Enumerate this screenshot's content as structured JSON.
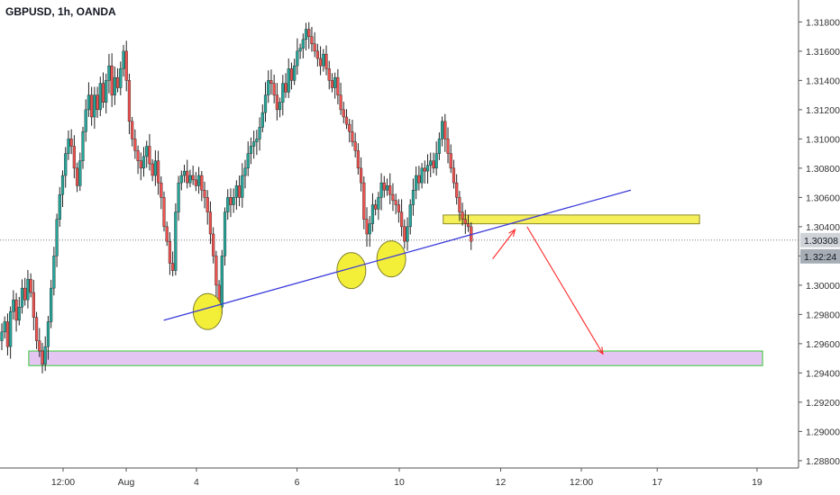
{
  "header": {
    "title": "GBPUSD, 1h, OANDA"
  },
  "chart_data": {
    "type": "candlestick",
    "symbol": "GBPUSD",
    "interval": "1h",
    "source": "OANDA",
    "ylim": [
      1.2875,
      1.3195
    ],
    "y_ticks": [
      "1.31800",
      "1.31600",
      "1.31400",
      "1.31200",
      "1.31000",
      "1.30800",
      "1.30600",
      "1.30400",
      "1.30200",
      "1.30000",
      "1.29800",
      "1.29600",
      "1.29400",
      "1.29200",
      "1.29000",
      "1.28800"
    ],
    "x_ticks": [
      "12:00",
      "Aug",
      "4",
      "6",
      "10",
      "12",
      "12:00",
      "17",
      "19"
    ],
    "last_price": {
      "label": "1.30308",
      "value": 1.30308
    },
    "countdown": {
      "label": "32:24"
    },
    "partial_label": "1.",
    "colors": {
      "up": "#26a69a",
      "down": "#ef5350",
      "wick": "#222222",
      "trendline": "#3b3bdb",
      "resistance": "#f5ef5a",
      "support": "#e4c6f2",
      "support_border": "#33cc33",
      "circle": "#f3ef2e",
      "arrow": "#ff2a2a"
    },
    "closes": [
      1.2968,
      1.2975,
      1.2958,
      1.2982,
      1.299,
      1.2976,
      1.2985,
      1.2998,
      1.299,
      1.3004,
      1.2995,
      1.2978,
      1.2962,
      1.2955,
      1.2946,
      1.2958,
      1.2975,
      1.2998,
      1.302,
      1.3045,
      1.3062,
      1.3075,
      1.309,
      1.31,
      1.3095,
      1.308,
      1.3068,
      1.3085,
      1.3105,
      1.312,
      1.313,
      1.3115,
      1.313,
      1.312,
      1.3138,
      1.3125,
      1.314,
      1.315,
      1.313,
      1.3142,
      1.3135,
      1.3148,
      1.316,
      1.314,
      1.3112,
      1.31,
      1.3092,
      1.3085,
      1.308,
      1.3088,
      1.3095,
      1.3083,
      1.3075,
      1.3085,
      1.307,
      1.306,
      1.304,
      1.303,
      1.3015,
      1.301,
      1.305,
      1.307,
      1.3075,
      1.3078,
      1.307,
      1.3075,
      1.3072,
      1.3068,
      1.3075,
      1.3065,
      1.306,
      1.305,
      1.3035,
      1.302,
      1.3,
      1.2985,
      1.302,
      1.305,
      1.306,
      1.3055,
      1.306,
      1.3068,
      1.306,
      1.3075,
      1.308,
      1.309,
      1.3095,
      1.3098,
      1.31,
      1.3108,
      1.3118,
      1.313,
      1.314,
      1.3138,
      1.313,
      1.312,
      1.3125,
      1.3138,
      1.3132,
      1.3148,
      1.314,
      1.315,
      1.316,
      1.3162,
      1.3168,
      1.3175,
      1.317,
      1.3165,
      1.316,
      1.3155,
      1.315,
      1.3158,
      1.3148,
      1.314,
      1.3135,
      1.3142,
      1.313,
      1.312,
      1.3115,
      1.311,
      1.3105,
      1.3098,
      1.3092,
      1.308,
      1.307,
      1.3045,
      1.3035,
      1.3042,
      1.3055,
      1.3052,
      1.306,
      1.307,
      1.3065,
      1.3068,
      1.3062,
      1.3058,
      1.3055,
      1.305,
      1.304,
      1.303,
      1.304,
      1.3055,
      1.3065,
      1.3075,
      1.307,
      1.308,
      1.3078,
      1.3082,
      1.3085,
      1.308,
      1.309,
      1.31,
      1.3112,
      1.31,
      1.309,
      1.308,
      1.307,
      1.306,
      1.305,
      1.3045,
      1.3042,
      1.304,
      1.303
    ],
    "x_start_day_offset": 0,
    "annotations": {
      "trendline": {
        "from": [
          0.205,
          1.2976
        ],
        "to": [
          0.79,
          1.3065
        ]
      },
      "resistance_zone": {
        "x": [
          0.555,
          0.876
        ],
        "y": [
          1.3042,
          1.3048
        ]
      },
      "support_zone": {
        "x": [
          0.036,
          0.955
        ],
        "y": [
          1.2945,
          1.2955
        ]
      },
      "circles": [
        {
          "x": 0.26,
          "y": 1.2982
        },
        {
          "x": 0.44,
          "y": 1.301
        },
        {
          "x": 0.49,
          "y": 1.3018
        }
      ],
      "arrow_up": {
        "from": [
          0.617,
          1.3018
        ],
        "to": [
          0.645,
          1.3038
        ]
      },
      "arrow_down": {
        "from": [
          0.66,
          1.304
        ],
        "to": [
          0.755,
          1.2953
        ]
      }
    }
  }
}
